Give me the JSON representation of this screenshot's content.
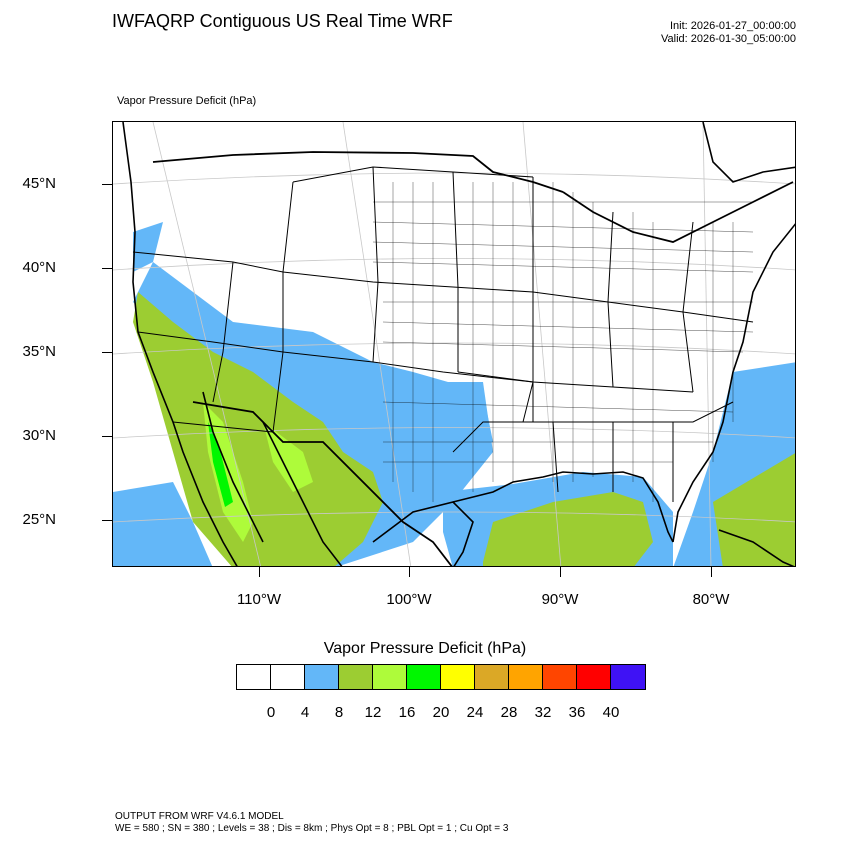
{
  "header": {
    "title": "IWFAQRP Contiguous US Real Time WRF",
    "init": "Init: 2026-01-27_00:00:00",
    "valid": "Valid: 2026-01-30_05:00:00"
  },
  "field_label": "Vapor Pressure Deficit   (hPa)",
  "map": {
    "lat_labels": [
      "45°N",
      "40°N",
      "35°N",
      "30°N",
      "25°N"
    ],
    "lon_labels": [
      "110°W",
      "100°W",
      "90°W",
      "80°W"
    ]
  },
  "colorbar": {
    "title": "Vapor Pressure Deficit  (hPa)",
    "colors": [
      "#ffffff",
      "#ffffff",
      "#63b7f8",
      "#9ccd32",
      "#aefb3a",
      "#00f700",
      "#ffff00",
      "#dba826",
      "#ffa400",
      "#ff4500",
      "#ff0000",
      "#3f12f5"
    ],
    "labels": [
      "0",
      "4",
      "8",
      "12",
      "16",
      "20",
      "24",
      "28",
      "32",
      "36",
      "40"
    ]
  },
  "footer": {
    "line1": "OUTPUT FROM WRF V4.6.1 MODEL",
    "line2": "WE = 580 ; SN = 380 ; Levels = 38 ; Dis = 8km ; Phys Opt = 8 ; PBL Opt = 1 ; Cu Opt = 3"
  }
}
